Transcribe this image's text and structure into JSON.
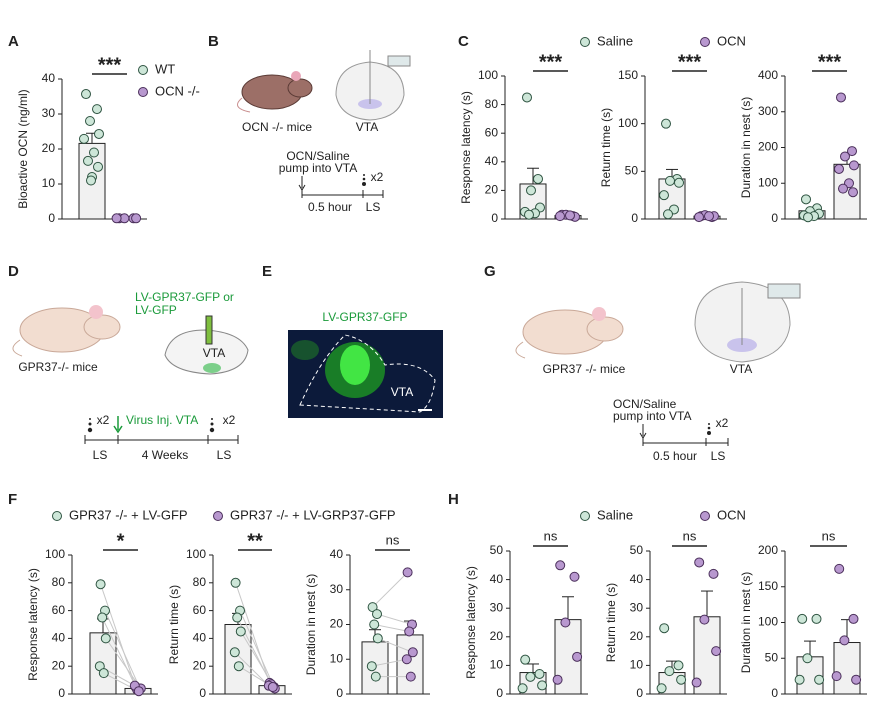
{
  "panels": [
    "A",
    "B",
    "C",
    "D",
    "E",
    "F",
    "G",
    "H"
  ],
  "diagrams": {
    "B": {
      "mouse": "OCN -/- mice",
      "region": "VTA",
      "treatment": [
        "OCN/Saline",
        "pump into VTA"
      ],
      "repeat": "x2",
      "interval": "0.5 hour",
      "test": "LS"
    },
    "D": {
      "vector": [
        "LV-GPR37-GFP or",
        "LV-GFP"
      ],
      "mouse": "GPR37-/- mice",
      "region": "VTA",
      "repeat": [
        "x2",
        "x2"
      ],
      "injection": "Virus Inj. VTA",
      "test": [
        "LS",
        "LS"
      ],
      "interval": "4 Weeks"
    },
    "E": {
      "label": "LV-GPR37-GFP",
      "region": "VTA"
    },
    "G": {
      "mouse": "GPR37 -/- mice",
      "region": "VTA",
      "treatment": [
        "OCN/Saline",
        "pump into VTA"
      ],
      "repeat": "x2",
      "interval": "0.5 hour",
      "test": "LS"
    }
  },
  "chart_data": [
    {
      "type": "bar",
      "ylabel": "Bioactive OCN (ng/ml)",
      "ylim": [
        0,
        40
      ],
      "yticks": [
        0,
        10,
        20,
        30,
        40
      ],
      "annotation": "***",
      "series": [
        {
          "name": "WT",
          "color": "#cde6d8",
          "values": [
            21.6
          ],
          "errors": [
            2.9
          ],
          "points": [
            35.7,
            31.4,
            28,
            24.3,
            22.9,
            19,
            16.6,
            14.9,
            12,
            11
          ]
        },
        {
          "name": "OCN -/-",
          "color": "#b898cf",
          "values": [
            0.2
          ],
          "errors": [
            0.1
          ],
          "points": [
            0.2,
            0.2,
            0.2,
            0.2,
            0.2
          ]
        }
      ]
    },
    {
      "type": "bar",
      "ylabel": "Response latency (s)",
      "ylim": [
        0,
        100
      ],
      "yticks": [
        0,
        20,
        40,
        60,
        80,
        100
      ],
      "annotation": "***",
      "series": [
        {
          "name": "Saline",
          "color": "#cde6d8",
          "values": [
            24.5
          ],
          "errors": [
            11
          ],
          "points": [
            85,
            28,
            20,
            8,
            5,
            4,
            3
          ]
        },
        {
          "name": "OCN",
          "color": "#b898cf",
          "values": [
            2.4
          ],
          "errors": [
            0.5
          ],
          "points": [
            3,
            2,
            3,
            1.5,
            2,
            2.5
          ]
        }
      ]
    },
    {
      "type": "bar",
      "ylabel": "Return time (s)",
      "ylim": [
        0,
        150
      ],
      "yticks": [
        0,
        50,
        100,
        150
      ],
      "annotation": "***",
      "series": [
        {
          "color": "#cde6d8",
          "values": [
            42
          ],
          "errors": [
            10
          ],
          "points": [
            100,
            42,
            40,
            38,
            25,
            10,
            5
          ]
        },
        {
          "color": "#b898cf",
          "values": [
            3
          ],
          "errors": [
            0.5
          ],
          "points": [
            3,
            2,
            4,
            3,
            2,
            3
          ]
        }
      ]
    },
    {
      "type": "bar",
      "ylabel": "Duration in nest (s)",
      "ylim": [
        0,
        400
      ],
      "yticks": [
        0,
        100,
        200,
        300,
        400
      ],
      "annotation": "***",
      "series": [
        {
          "color": "#cde6d8",
          "values": [
            23
          ],
          "errors": [
            6
          ],
          "points": [
            55,
            30,
            22,
            15,
            10,
            8,
            5
          ]
        },
        {
          "color": "#b898cf",
          "values": [
            153
          ],
          "errors": [
            28
          ],
          "points": [
            340,
            190,
            175,
            150,
            140,
            100,
            85,
            75
          ]
        }
      ]
    },
    {
      "type": "bar",
      "paired": true,
      "ylabel": "Response latency (s)",
      "ylim": [
        0,
        100
      ],
      "yticks": [
        0,
        20,
        40,
        60,
        80,
        100
      ],
      "annotation": "*",
      "series": [
        {
          "name": "GPR37 -/- + LV-GFP",
          "color": "#cde6d8",
          "values": [
            44
          ],
          "errors": [
            10
          ],
          "points": [
            79,
            60,
            55,
            40,
            20,
            15
          ]
        },
        {
          "name": "GPR37 -/- + LV-GRP37-GFP",
          "color": "#b898cf",
          "values": [
            4
          ],
          "errors": [
            0.7
          ],
          "points": [
            5,
            4,
            3,
            4,
            6,
            2
          ]
        }
      ]
    },
    {
      "type": "bar",
      "paired": true,
      "ylabel": "Return time (s)",
      "ylim": [
        0,
        100
      ],
      "yticks": [
        0,
        20,
        40,
        60,
        80,
        100
      ],
      "annotation": "**",
      "series": [
        {
          "color": "#cde6d8",
          "values": [
            50
          ],
          "errors": [
            8
          ],
          "points": [
            80,
            60,
            55,
            45,
            30,
            20
          ]
        },
        {
          "color": "#b898cf",
          "values": [
            6
          ],
          "errors": [
            1
          ],
          "points": [
            8,
            5,
            7,
            4,
            6,
            5
          ]
        }
      ]
    },
    {
      "type": "bar",
      "paired": true,
      "ylabel": "Duration in nest (s)",
      "ylim": [
        0,
        40
      ],
      "yticks": [
        0,
        10,
        20,
        30,
        40
      ],
      "annotation": "ns",
      "series": [
        {
          "color": "#cde6d8",
          "values": [
            15
          ],
          "errors": [
            3.5
          ],
          "points": [
            25,
            23,
            20,
            16,
            8,
            5
          ]
        },
        {
          "color": "#b898cf",
          "values": [
            17
          ],
          "errors": [
            4
          ],
          "points": [
            35,
            20,
            18,
            12,
            10,
            5
          ]
        }
      ]
    },
    {
      "type": "bar",
      "ylabel": "Response latency (s)",
      "ylim": [
        0,
        50
      ],
      "yticks": [
        0,
        10,
        20,
        30,
        40,
        50
      ],
      "annotation": "ns",
      "series": [
        {
          "name": "Saline",
          "color": "#cde6d8",
          "values": [
            7.5
          ],
          "errors": [
            3
          ],
          "points": [
            12,
            7,
            6,
            3,
            2
          ]
        },
        {
          "name": "OCN",
          "color": "#b898cf",
          "values": [
            26
          ],
          "errors": [
            8
          ],
          "points": [
            45,
            41,
            25,
            13,
            5
          ]
        }
      ]
    },
    {
      "type": "bar",
      "ylabel": "Return time (s)",
      "ylim": [
        0,
        50
      ],
      "yticks": [
        0,
        10,
        20,
        30,
        40,
        50
      ],
      "annotation": "ns",
      "series": [
        {
          "color": "#cde6d8",
          "values": [
            7.5
          ],
          "errors": [
            4
          ],
          "points": [
            23,
            10,
            8,
            5,
            2
          ]
        },
        {
          "color": "#b898cf",
          "values": [
            27
          ],
          "errors": [
            9
          ],
          "points": [
            46,
            42,
            26,
            15,
            4
          ]
        }
      ]
    },
    {
      "type": "bar",
      "ylabel": "Duration in nest (s)",
      "ylim": [
        0,
        200
      ],
      "yticks": [
        0,
        50,
        100,
        150,
        200
      ],
      "annotation": "ns",
      "series": [
        {
          "color": "#cde6d8",
          "values": [
            52
          ],
          "errors": [
            22
          ],
          "points": [
            105,
            105,
            50,
            20,
            20
          ]
        },
        {
          "color": "#b898cf",
          "values": [
            72
          ],
          "errors": [
            32
          ],
          "points": [
            175,
            105,
            75,
            20,
            25
          ]
        }
      ]
    }
  ]
}
